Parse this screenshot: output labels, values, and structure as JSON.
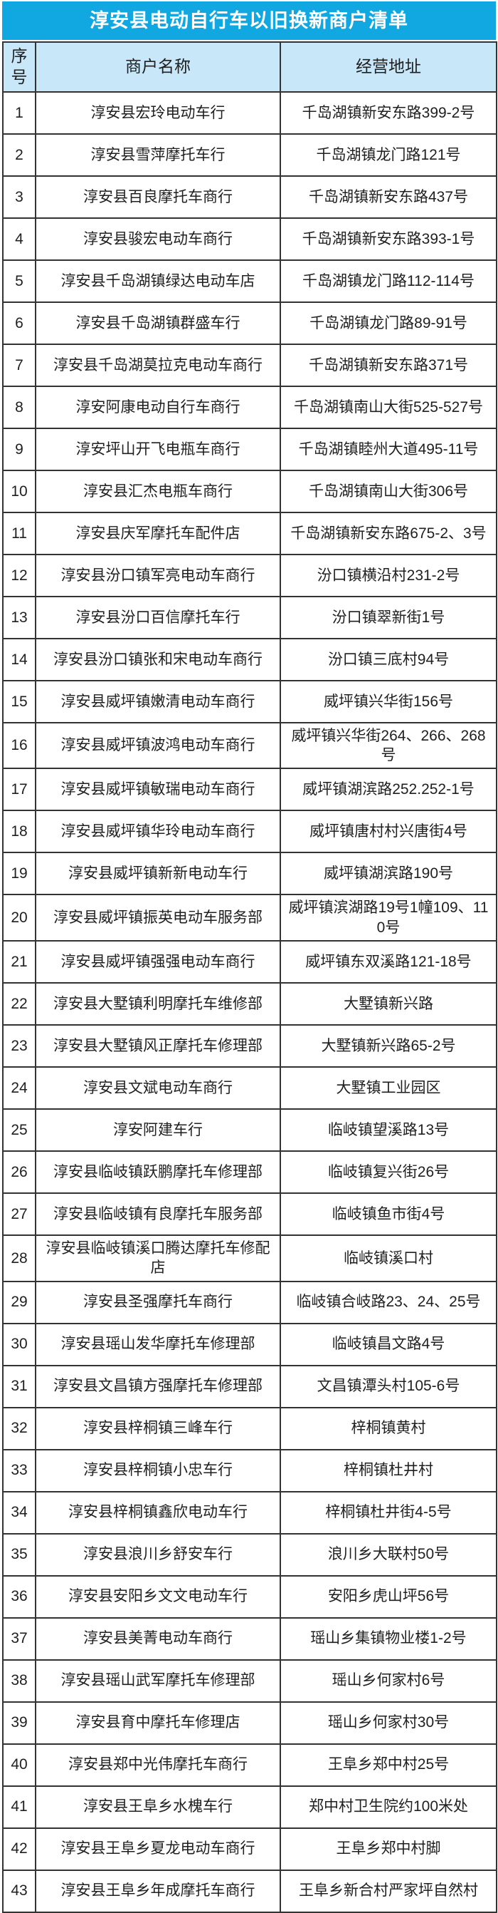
{
  "title": "淳安县电动自行车以旧换新商户清单",
  "colors": {
    "title_bg": "#11a8e2",
    "title_text": "#ffffff",
    "header_bg": "#c8e7f8",
    "border": "#333333",
    "text": "#1f1f1f"
  },
  "table": {
    "headers": [
      "序号",
      "商户名称",
      "经营地址"
    ],
    "rows": [
      [
        "1",
        "淳安县宏玲电动车行",
        "千岛湖镇新安东路399-2号"
      ],
      [
        "2",
        "淳安县雪萍摩托车行",
        "千岛湖镇龙门路121号"
      ],
      [
        "3",
        "淳安县百良摩托车商行",
        "千岛湖镇新安东路437号"
      ],
      [
        "4",
        "淳安县骏宏电动车商行",
        "千岛湖镇新安东路393-1号"
      ],
      [
        "5",
        "淳安县千岛湖镇绿达电动车店",
        "千岛湖镇龙门路112-114号"
      ],
      [
        "6",
        "淳安县千岛湖镇群盛车行",
        "千岛湖镇龙门路89-91号"
      ],
      [
        "7",
        "淳安县千岛湖莫拉克电动车商行",
        "千岛湖镇新安东路371号"
      ],
      [
        "8",
        "淳安阿康电动自行车商行",
        "千岛湖镇南山大街525-527号"
      ],
      [
        "9",
        "淳安坪山开飞电瓶车商行",
        "千岛湖镇睦州大道495-11号"
      ],
      [
        "10",
        "淳安县汇杰电瓶车商行",
        "千岛湖镇南山大街306号"
      ],
      [
        "11",
        "淳安县庆军摩托车配件店",
        "千岛湖镇新安东路675-2、3号"
      ],
      [
        "12",
        "淳安县汾口镇军亮电动车商行",
        "汾口镇横沿村231-2号"
      ],
      [
        "13",
        "淳安县汾口百信摩托车行",
        "汾口镇翠新街1号"
      ],
      [
        "14",
        "淳安县汾口镇张和宋电动车商行",
        "汾口镇三底村94号"
      ],
      [
        "15",
        "淳安县威坪镇嫩清电动车商行",
        "威坪镇兴华街156号"
      ],
      [
        "16",
        "淳安县威坪镇波鸿电动车商行",
        "威坪镇兴华街264、266、268号"
      ],
      [
        "17",
        "淳安县威坪镇敏瑞电动车商行",
        "威坪镇湖滨路252.252-1号"
      ],
      [
        "18",
        "淳安县威坪镇华玲电动车商行",
        "威坪镇唐村村兴唐街4号"
      ],
      [
        "19",
        "淳安县威坪镇新新电动车行",
        "威坪镇湖滨路190号"
      ],
      [
        "20",
        "淳安县威坪镇振英电动车服务部",
        "威坪镇滨湖路19号1幢109、110号"
      ],
      [
        "21",
        "淳安县威坪镇强强电动车商行",
        "威坪镇东双溪路121-18号"
      ],
      [
        "22",
        "淳安县大墅镇利明摩托车维修部",
        "大墅镇新兴路"
      ],
      [
        "23",
        "淳安县大墅镇风正摩托车修理部",
        "大墅镇新兴路65-2号"
      ],
      [
        "24",
        "淳安县文斌电动车商行",
        "大墅镇工业园区"
      ],
      [
        "25",
        "淳安阿建车行",
        "临岐镇望溪路13号"
      ],
      [
        "26",
        "淳安县临岐镇跃鹏摩托车修理部",
        "临岐镇复兴街26号"
      ],
      [
        "27",
        "淳安县临岐镇有良摩托车服务部",
        "临岐镇鱼市街4号"
      ],
      [
        "28",
        "淳安县临岐镇溪口腾达摩托车修配店",
        "临岐镇溪口村"
      ],
      [
        "29",
        "淳安县圣强摩托车商行",
        "临岐镇合岐路23、24、25号"
      ],
      [
        "30",
        "淳安县瑶山发华摩托车修理部",
        "临岐镇昌文路4号"
      ],
      [
        "31",
        "淳安县文昌镇方强摩托车修理部",
        "文昌镇潭头村105-6号"
      ],
      [
        "32",
        "淳安县梓桐镇三峰车行",
        "梓桐镇黄村"
      ],
      [
        "33",
        "淳安县梓桐镇小忠车行",
        "梓桐镇杜井村"
      ],
      [
        "34",
        "淳安县梓桐镇鑫欣电动车行",
        "梓桐镇杜井街4-5号"
      ],
      [
        "35",
        "淳安县浪川乡舒安车行",
        "浪川乡大联村50号"
      ],
      [
        "36",
        "淳安县安阳乡文文电动车行",
        "安阳乡虎山坪56号"
      ],
      [
        "37",
        "淳安县美菁电动车商行",
        "瑶山乡集镇物业楼1-2号"
      ],
      [
        "38",
        "淳安县瑶山武军摩托车修理部",
        "瑶山乡何家村6号"
      ],
      [
        "39",
        "淳安县育中摩托车修理店",
        "瑶山乡何家村30号"
      ],
      [
        "40",
        "淳安县郑中光伟摩托车商行",
        "王阜乡郑中村25号"
      ],
      [
        "41",
        "淳安县王阜乡水槐车行",
        "郑中村卫生院约100米处"
      ],
      [
        "42",
        "淳安县王阜乡夏龙电动车商行",
        "王阜乡郑中村脚"
      ],
      [
        "43",
        "淳安县王阜乡年成摩托车商行",
        "王阜乡新合村严家坪自然村"
      ]
    ]
  }
}
